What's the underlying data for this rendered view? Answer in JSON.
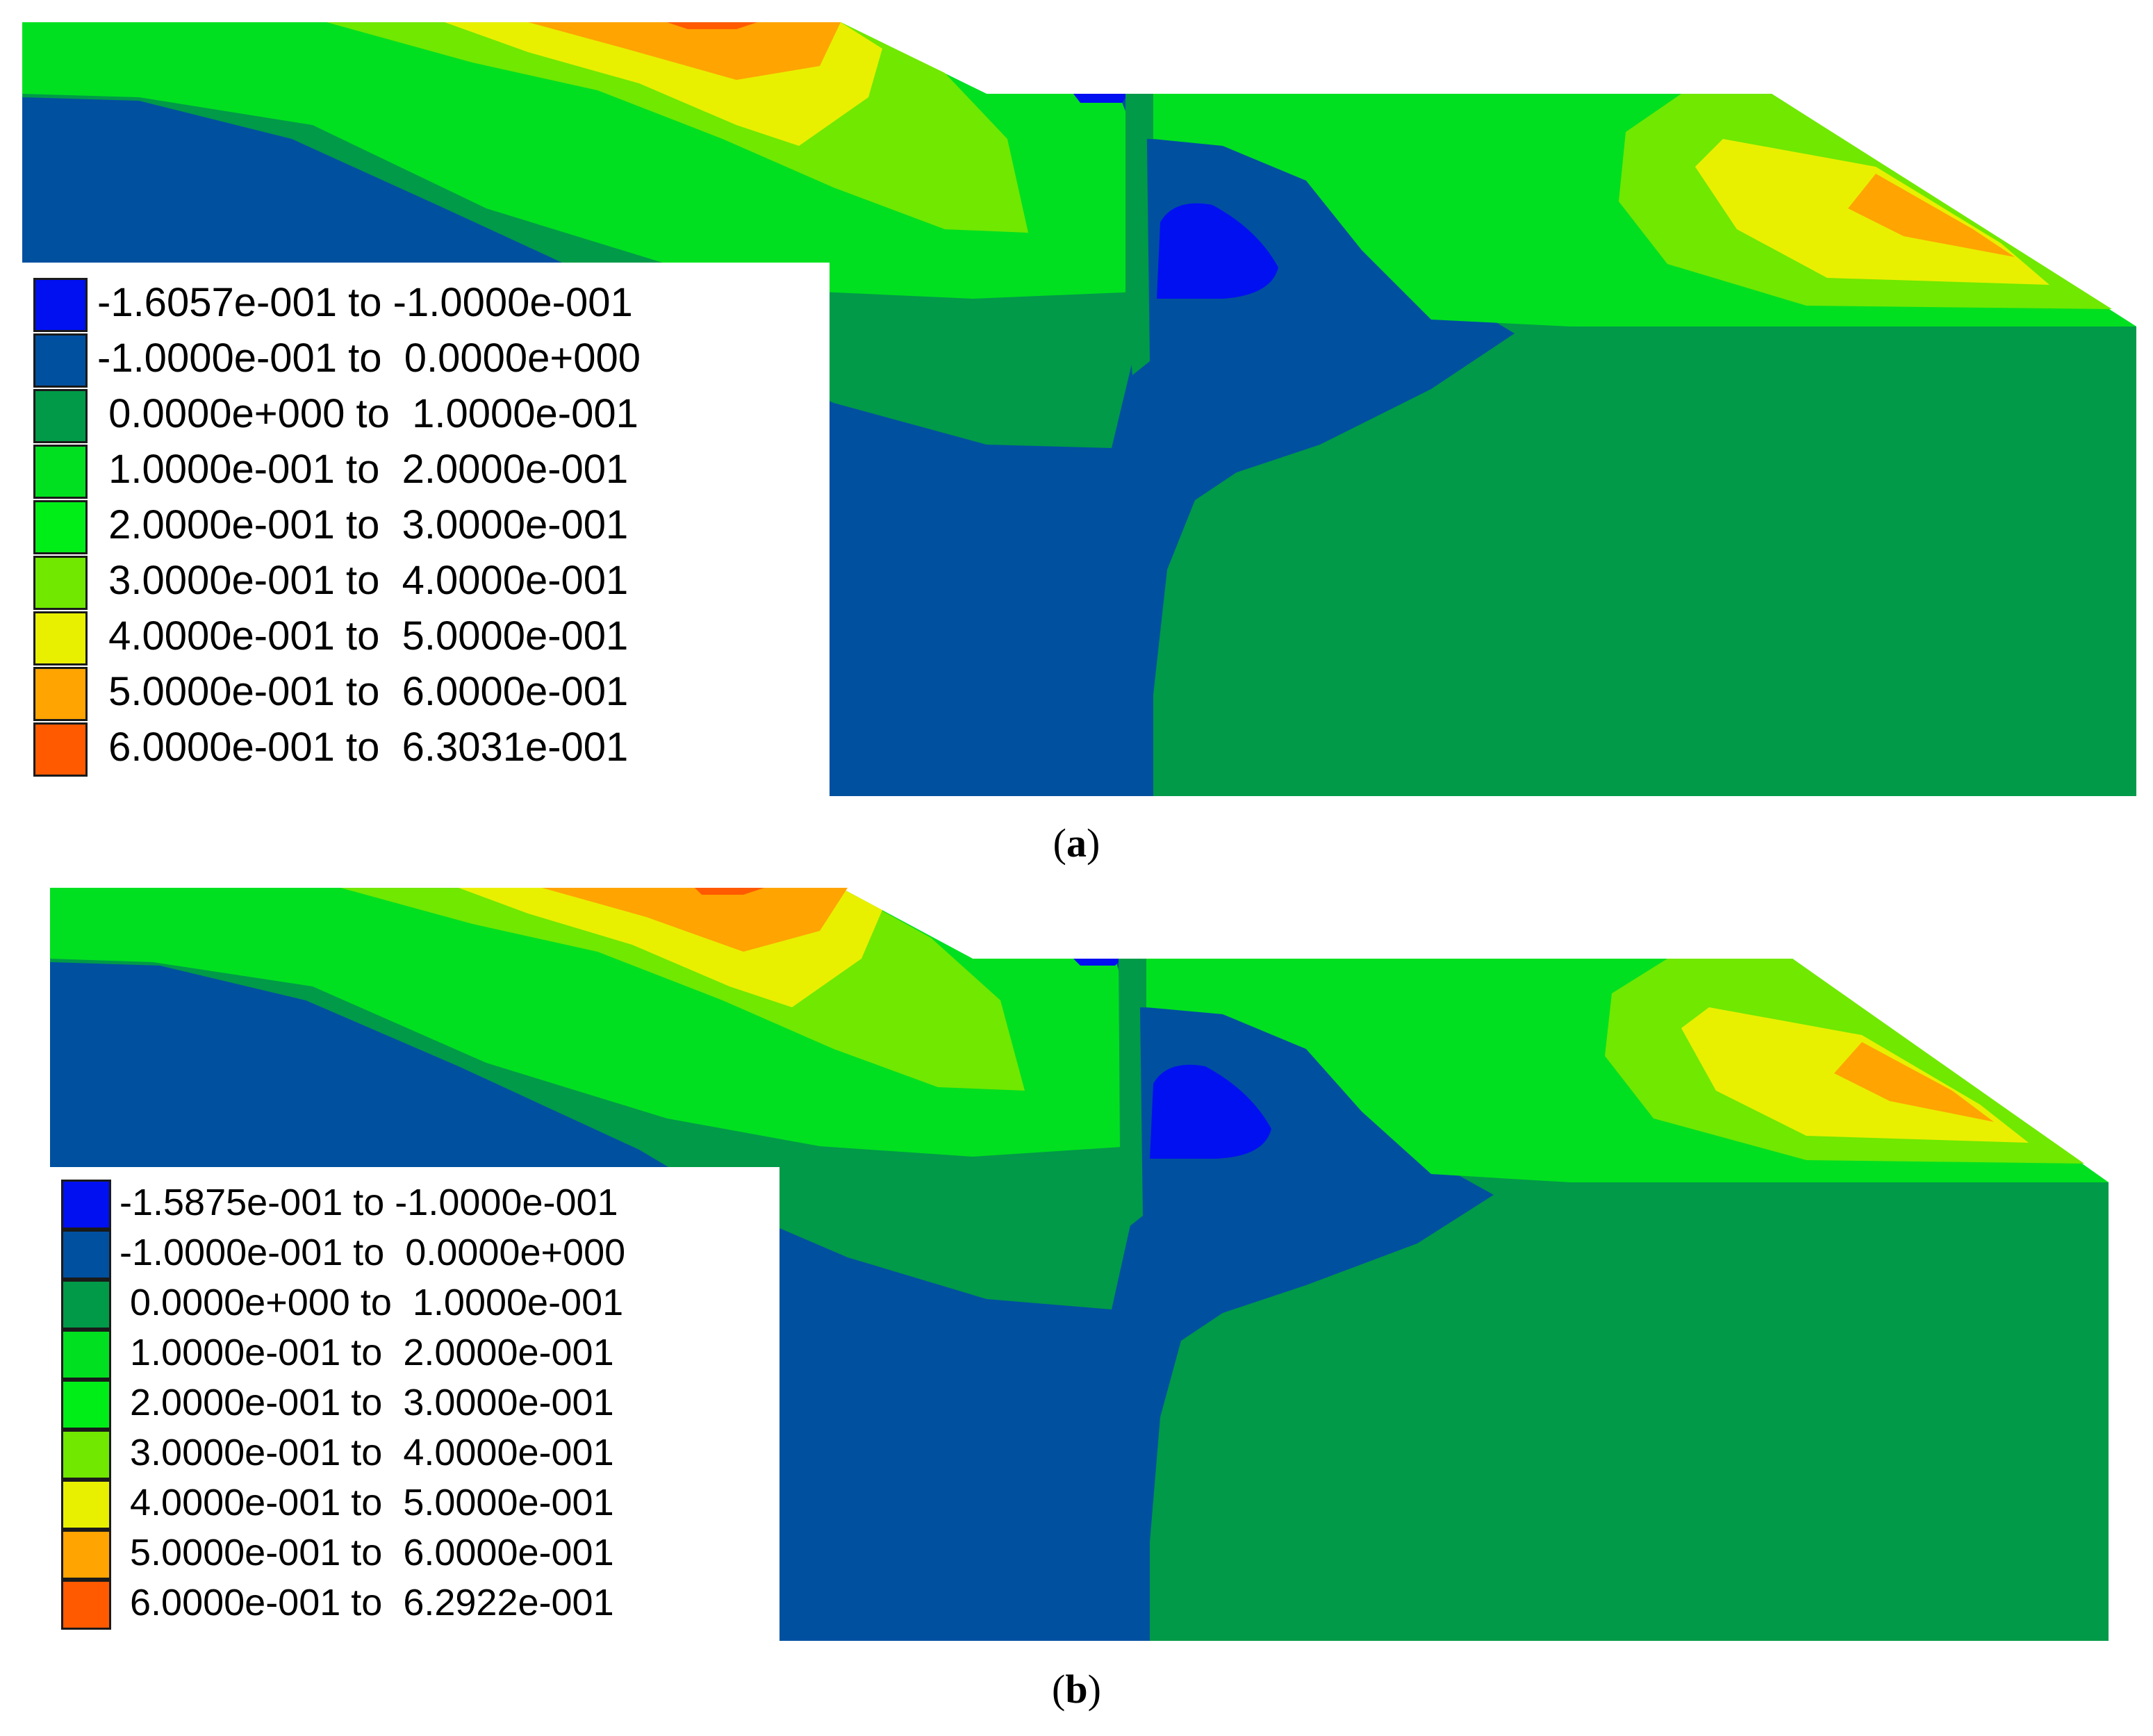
{
  "colors": {
    "band_1": "#0010f0",
    "band_2": "#0050a0",
    "band_3": "#009a48",
    "band_4": "#00e020",
    "band_5": "#00ee18",
    "band_6": "#70e800",
    "band_7": "#e8f000",
    "band_8": "#ffa400",
    "band_9": "#ff5a00"
  },
  "panels": [
    {
      "caption_letter": "a",
      "legend": [
        {
          "range": "-1.6057e-001 to -1.0000e-001"
        },
        {
          "range": "-1.0000e-001 to  0.0000e+000"
        },
        {
          "range": " 0.0000e+000 to  1.0000e-001"
        },
        {
          "range": " 1.0000e-001 to  2.0000e-001"
        },
        {
          "range": " 2.0000e-001 to  3.0000e-001"
        },
        {
          "range": " 3.0000e-001 to  4.0000e-001"
        },
        {
          "range": " 4.0000e-001 to  5.0000e-001"
        },
        {
          "range": " 5.0000e-001 to  6.0000e-001"
        },
        {
          "range": " 6.0000e-001 to  6.3031e-001"
        }
      ]
    },
    {
      "caption_letter": "b",
      "legend": [
        {
          "range": "-1.5875e-001 to -1.0000e-001"
        },
        {
          "range": "-1.0000e-001 to  0.0000e+000"
        },
        {
          "range": " 0.0000e+000 to  1.0000e-001"
        },
        {
          "range": " 1.0000e-001 to  2.0000e-001"
        },
        {
          "range": " 2.0000e-001 to  3.0000e-001"
        },
        {
          "range": " 3.0000e-001 to  4.0000e-001"
        },
        {
          "range": " 4.0000e-001 to  5.0000e-001"
        },
        {
          "range": " 5.0000e-001 to  6.0000e-001"
        },
        {
          "range": " 6.0000e-001 to  6.2922e-001"
        }
      ]
    }
  ]
}
